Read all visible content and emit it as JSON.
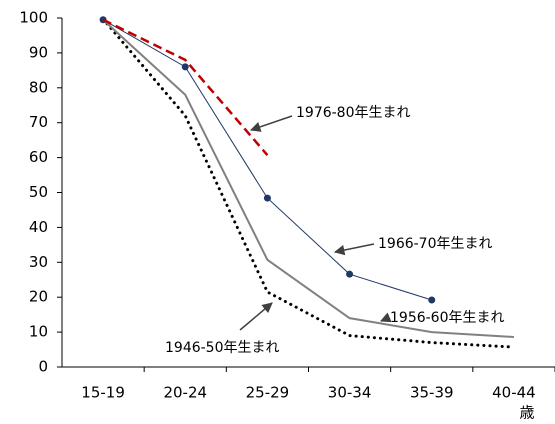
{
  "chart_data": {
    "type": "line",
    "categories": [
      "15-19",
      "20-24",
      "25-29",
      "30-34",
      "35-39",
      "40-44"
    ],
    "x_label": "歳",
    "ylim": [
      0,
      100
    ],
    "yticks": [
      0,
      10,
      20,
      30,
      40,
      50,
      60,
      70,
      80,
      90,
      100
    ],
    "series": [
      {
        "name": "1946-50年生まれ",
        "color": "#000000",
        "style": "dotted",
        "values": [
          99.7,
          72,
          21.5,
          9,
          7,
          5.7
        ]
      },
      {
        "name": "1956-60年生まれ",
        "color": "#808080",
        "style": "solid",
        "values": [
          99.5,
          78,
          30.7,
          14,
          10,
          8.6
        ]
      },
      {
        "name": "1966-70年生まれ",
        "color": "#1f3864",
        "style": "solid",
        "marker": "circle",
        "values": [
          99.5,
          86,
          48.4,
          26.6,
          19.2,
          null
        ]
      },
      {
        "name": "1976-80年生まれ",
        "color": "#c00000",
        "style": "dashed",
        "values": [
          99.5,
          88,
          60.7,
          null,
          null,
          null
        ]
      }
    ]
  }
}
